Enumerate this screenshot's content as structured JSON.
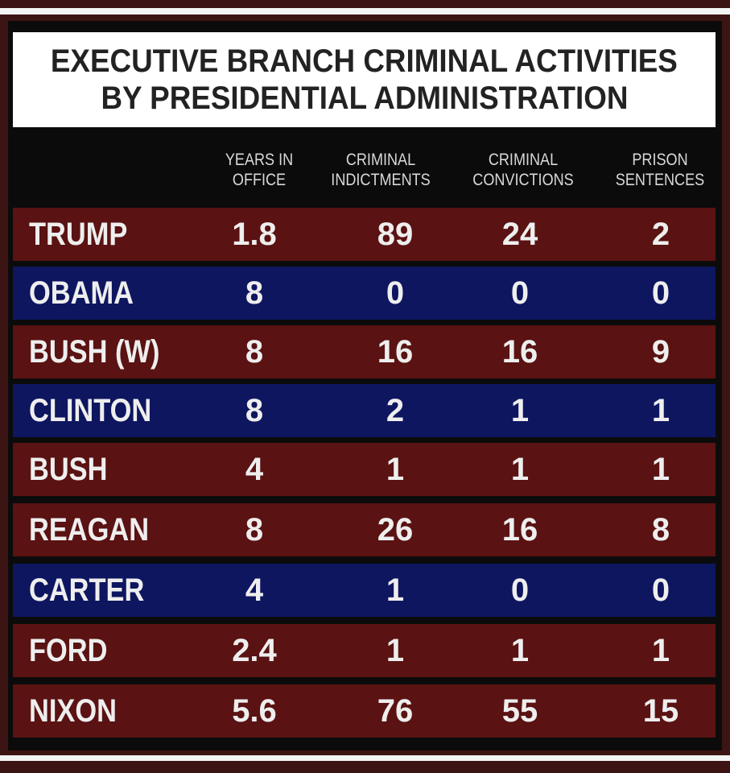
{
  "chart_data": {
    "type": "table",
    "title": "EXECUTIVE BRANCH CRIMINAL ACTIVITIES",
    "subtitle": "BY PRESIDENTIAL ADMINISTRATION",
    "columns": [
      {
        "line1": "YEARS IN",
        "line2": "OFFICE"
      },
      {
        "line1": "CRIMINAL",
        "line2": "INDICTMENTS"
      },
      {
        "line1": "CRIMINAL",
        "line2": "CONVICTIONS"
      },
      {
        "line1": "PRISON",
        "line2": "SENTENCES"
      }
    ],
    "rows": [
      {
        "name": "TRUMP",
        "party_color": "red",
        "years": "1.8",
        "indictments": "89",
        "convictions": "24",
        "sentences": "2"
      },
      {
        "name": "OBAMA",
        "party_color": "blue",
        "years": "8",
        "indictments": "0",
        "convictions": "0",
        "sentences": "0"
      },
      {
        "name": "BUSH (W)",
        "party_color": "red",
        "years": "8",
        "indictments": "16",
        "convictions": "16",
        "sentences": "9"
      },
      {
        "name": "CLINTON",
        "party_color": "blue",
        "years": "8",
        "indictments": "2",
        "convictions": "1",
        "sentences": "1"
      },
      {
        "name": "BUSH",
        "party_color": "red",
        "years": "4",
        "indictments": "1",
        "convictions": "1",
        "sentences": "1"
      },
      {
        "name": "REAGAN",
        "party_color": "red",
        "years": "8",
        "indictments": "26",
        "convictions": "16",
        "sentences": "8"
      },
      {
        "name": "CARTER",
        "party_color": "blue",
        "years": "4",
        "indictments": "1",
        "convictions": "0",
        "sentences": "0"
      },
      {
        "name": "FORD",
        "party_color": "red",
        "years": "2.4",
        "indictments": "1",
        "convictions": "1",
        "sentences": "1"
      },
      {
        "name": "NIXON",
        "party_color": "red",
        "years": "5.6",
        "indictments": "76",
        "convictions": "55",
        "sentences": "15"
      }
    ]
  },
  "colors": {
    "red_row": "#5a1212",
    "blue_row": "#0e1660",
    "background": "#3d1414",
    "board": "#0b0b0b",
    "title_bg": "#ffffff"
  }
}
